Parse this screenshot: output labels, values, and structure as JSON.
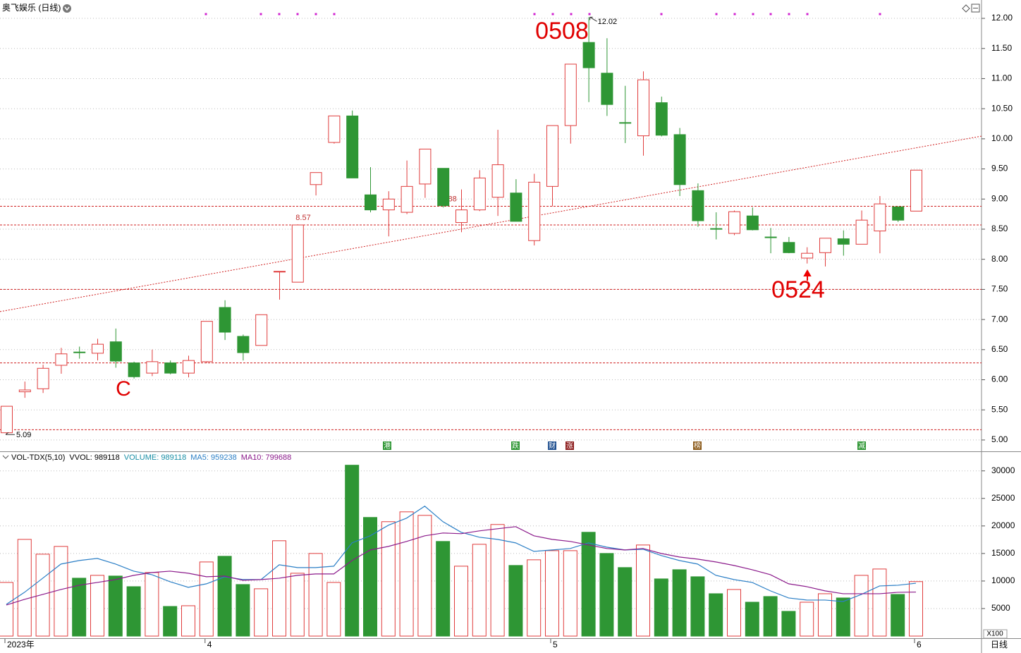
{
  "chart_data": [
    {
      "type": "candlestick",
      "title": "奥飞娱乐 (日线)",
      "open": [
        5.12,
        5.8,
        5.85,
        6.24,
        6.46,
        6.44,
        6.63,
        6.28,
        6.11,
        6.28,
        6.11,
        6.3,
        7.2,
        6.72,
        6.57,
        7.79,
        7.62,
        9.24,
        9.94,
        10.38,
        9.07,
        8.82,
        8.78,
        9.25,
        9.51,
        8.61,
        8.82,
        9.03,
        9.1,
        8.31,
        9.21,
        10.22,
        11.6,
        11.09,
        10.27,
        10.05,
        10.6,
        10.07,
        9.14,
        8.51,
        8.43,
        8.72,
        8.37,
        8.28,
        8.02,
        8.11,
        8.34,
        8.25,
        8.47,
        8.87,
        8.8
      ],
      "high": [
        5.56,
        5.97,
        6.25,
        6.53,
        6.55,
        6.68,
        6.85,
        6.3,
        6.5,
        6.32,
        6.4,
        6.97,
        7.32,
        6.75,
        7.08,
        7.8,
        8.58,
        9.44,
        10.38,
        10.47,
        9.53,
        9.13,
        9.64,
        9.83,
        9.51,
        9.16,
        9.48,
        10.15,
        9.33,
        9.42,
        10.22,
        11.24,
        12.02,
        11.67,
        10.88,
        11.12,
        10.7,
        10.18,
        9.26,
        8.78,
        8.81,
        8.86,
        8.52,
        8.37,
        8.2,
        8.35,
        8.48,
        8.81,
        9.05,
        8.88,
        9.48
      ],
      "low": [
        5.09,
        5.7,
        5.78,
        6.1,
        6.35,
        6.32,
        6.2,
        6.02,
        6.06,
        6.09,
        6.04,
        6.28,
        6.66,
        6.32,
        6.57,
        7.33,
        7.62,
        9.06,
        9.92,
        9.35,
        8.78,
        8.38,
        8.75,
        9.02,
        8.86,
        8.45,
        8.8,
        8.72,
        8.63,
        8.23,
        8.88,
        9.92,
        10.61,
        10.38,
        9.93,
        9.72,
        10.04,
        9.05,
        8.54,
        8.33,
        8.4,
        8.48,
        8.1,
        8.1,
        7.93,
        7.88,
        8.06,
        8.25,
        8.1,
        8.62,
        8.8
      ],
      "close": [
        5.56,
        5.83,
        6.19,
        6.43,
        6.45,
        6.59,
        6.31,
        6.05,
        6.3,
        6.11,
        6.32,
        6.97,
        6.79,
        6.45,
        7.08,
        7.8,
        8.57,
        9.44,
        10.38,
        9.35,
        8.82,
        9.0,
        9.21,
        9.83,
        8.89,
        8.82,
        9.35,
        9.57,
        8.63,
        9.28,
        10.22,
        11.24,
        11.18,
        10.57,
        10.26,
        10.98,
        10.06,
        9.24,
        8.64,
        8.5,
        8.79,
        8.49,
        8.36,
        8.11,
        8.1,
        8.35,
        8.25,
        8.65,
        8.92,
        8.65,
        9.48
      ],
      "up_color": "#e03c3c",
      "down_color": "#2e9634",
      "ylim": [
        4.8,
        12.1
      ],
      "yticks": [
        {
          "value": 5,
          "label": "5.00"
        },
        {
          "value": 5.5,
          "label": "5.50"
        },
        {
          "value": 6,
          "label": "6.00"
        },
        {
          "value": 6.5,
          "label": "6.50"
        },
        {
          "value": 7,
          "label": "7.00"
        },
        {
          "value": 7.5,
          "label": "7.50"
        },
        {
          "value": 8,
          "label": "8.00"
        },
        {
          "value": 8.5,
          "label": "8.50"
        },
        {
          "value": 9,
          "label": "9.00"
        },
        {
          "value": 9.5,
          "label": "9.50"
        },
        {
          "value": 10,
          "label": "10.00"
        },
        {
          "value": 10.5,
          "label": "10.50"
        },
        {
          "value": 11,
          "label": "11.00"
        },
        {
          "value": 11.5,
          "label": "11.50"
        },
        {
          "value": 12,
          "label": "12.00"
        }
      ],
      "grid": true,
      "labeled_levels": [
        8.88,
        8.57
      ],
      "levels": [
        7.5,
        6.28,
        5.17
      ],
      "trendline": {
        "x": [
          0,
          50
        ],
        "y": [
          7.15,
          9.85
        ]
      },
      "annotations": [
        "0508",
        "0524",
        "C"
      ],
      "events": [
        "港",
        "跌",
        "财",
        "涨",
        "榜",
        "减"
      ],
      "event_colors": [
        "#2e9634",
        "#2e9634",
        "#1f4f8f",
        "#8b1a1a",
        "#8b5a1a",
        "#2e9634"
      ]
    },
    {
      "type": "bar",
      "indicator": "VOL-TDX(5,10)",
      "vvol": "VVOL: 989118",
      "unit": "X100",
      "period": "日线",
      "categories": [
        "2023年",
        null,
        null,
        null,
        null,
        null,
        null,
        null,
        null,
        null,
        null,
        "4",
        null,
        null,
        null,
        null,
        null,
        null,
        null,
        null,
        null,
        null,
        null,
        null,
        null,
        null,
        null,
        null,
        null,
        null,
        "5",
        null,
        null,
        null,
        null,
        null,
        null,
        null,
        null,
        null,
        null,
        null,
        null,
        null,
        null,
        null,
        null,
        null,
        null,
        null,
        "6"
      ],
      "series": [
        {
          "name": "VOLUME: 989118",
          "color": "#1a8fa6",
          "values": [
            9740,
            17560,
            14870,
            16280,
            10510,
            11030,
            10900,
            8970,
            11540,
            5380,
            5510,
            13460,
            14490,
            9360,
            8590,
            17310,
            11410,
            15000,
            9740,
            31030,
            21540,
            20770,
            22560,
            21920,
            17180,
            12690,
            16670,
            20260,
            12820,
            13850,
            15510,
            15510,
            18850,
            15000,
            12440,
            16540,
            10380,
            12050,
            10770,
            7690,
            8460,
            6150,
            7180,
            4490,
            6150,
            7690,
            6920,
            11030,
            12180,
            7560,
            9891.18
          ]
        },
        {
          "name": "MA5: 959238",
          "color": "#2b7fc6",
          "values": [
            5770,
            7950,
            10510,
            13080,
            13720,
            14100,
            13080,
            11790,
            11150,
            9870,
            8850,
            9490,
            10770,
            10260,
            10260,
            12950,
            12440,
            12440,
            12690,
            16920,
            18210,
            20130,
            21410,
            23590,
            20770,
            18850,
            17950,
            17560,
            16920,
            15380,
            15640,
            15900,
            16920,
            16150,
            15640,
            15770,
            14620,
            13720,
            13080,
            11030,
            10260,
            9740,
            8210,
            6920,
            6540,
            6540,
            6280,
            7560,
            9100,
            9230,
            9592.38
          ]
        },
        {
          "name": "MA10: 799688",
          "color": "#8b1a8b",
          "values": [
            5640,
            6670,
            7560,
            8460,
            9230,
            9740,
            10260,
            11030,
            11540,
            11790,
            11410,
            10770,
            10900,
            10130,
            10260,
            10510,
            11030,
            11280,
            11280,
            13720,
            15640,
            16280,
            17180,
            18210,
            18720,
            18590,
            19100,
            19490,
            19870,
            18210,
            17560,
            17180,
            16540,
            15900,
            15640,
            15900,
            15000,
            14360,
            13970,
            13460,
            12820,
            12050,
            11150,
            9490,
            8970,
            8210,
            7690,
            7690,
            7690,
            7950,
            7996.88
          ]
        }
      ],
      "ylim": [
        0,
        31500
      ],
      "yticks": [
        5000,
        10000,
        15000,
        20000,
        25000,
        30000
      ],
      "grid": true
    }
  ]
}
